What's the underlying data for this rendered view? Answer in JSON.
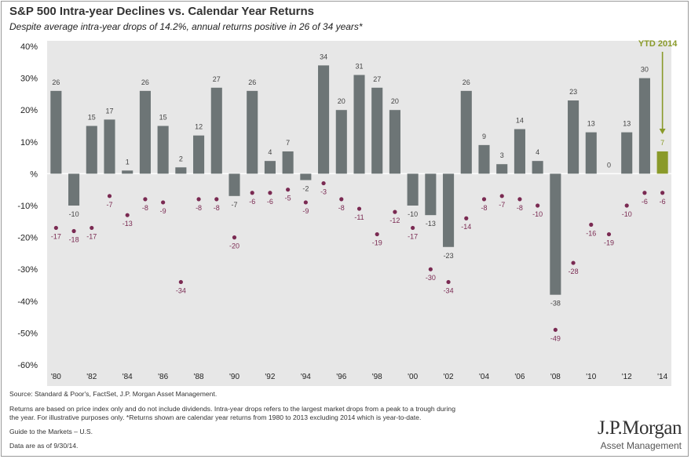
{
  "title": "S&P 500 Intra-year Declines vs. Calendar Year Returns",
  "subtitle": "Despite average intra-year drops of 14.2%, annual returns positive in 26 of 34 years*",
  "footnotes": {
    "source": "Source: Standard & Poor's, FactSet, J.P. Morgan Asset Management.",
    "line1": "Returns are based on price index only and do not include dividends. Intra-year drops refers to the largest market drops from a peak to a trough during",
    "line2": "the year. For illustrative purposes only. *Returns shown are calendar year returns from 1980 to 2013 excluding 2014 which is year-to-date.",
    "guide": "Guide to the Markets – U.S.",
    "asof": "Data are as of 9/30/14."
  },
  "logo": {
    "main": "J.P.Morgan",
    "sub": "Asset Management"
  },
  "colors": {
    "bar": "#6d7576",
    "bar_ytd": "#8a9a2a",
    "dot": "#7a2a52",
    "plot_bg": "#e7e7e7",
    "ytd_label": "#8a9a2a"
  },
  "chart_data": {
    "type": "bar",
    "categories": [
      "1980",
      "1981",
      "1982",
      "1983",
      "1984",
      "1985",
      "1986",
      "1987",
      "1988",
      "1989",
      "1990",
      "1991",
      "1992",
      "1993",
      "1994",
      "1995",
      "1996",
      "1997",
      "1998",
      "1999",
      "2000",
      "2001",
      "2002",
      "2003",
      "2004",
      "2005",
      "2006",
      "2007",
      "2008",
      "2009",
      "2010",
      "2011",
      "2012",
      "2013",
      "2014"
    ],
    "series": [
      {
        "values": [
          26,
          -10,
          15,
          17,
          1,
          26,
          15,
          2,
          12,
          27,
          -7,
          26,
          4,
          7,
          -2,
          34,
          20,
          31,
          27,
          20,
          -10,
          -13,
          -23,
          26,
          9,
          3,
          14,
          4,
          -38,
          23,
          13,
          0,
          13,
          30,
          7
        ]
      },
      {
        "values": [
          -17,
          -18,
          -17,
          -7,
          -13,
          -8,
          -9,
          -34,
          -8,
          -8,
          -20,
          -6,
          -6,
          -5,
          -9,
          -3,
          -8,
          -11,
          -19,
          -12,
          -17,
          -30,
          -34,
          -14,
          -8,
          -7,
          -8,
          -10,
          -49,
          -28,
          -16,
          -19,
          -10,
          -6,
          -6
        ]
      }
    ],
    "xticks": [
      "'80",
      "'82",
      "'84",
      "'86",
      "'88",
      "'90",
      "'92",
      "'94",
      "'96",
      "'98",
      "'00",
      "'02",
      "'04",
      "'06",
      "'08",
      "'10",
      "'12",
      "'14"
    ],
    "yticks": [
      "40%",
      "30%",
      "20%",
      "10%",
      "%",
      "-10%",
      "-20%",
      "-30%",
      "-40%",
      "-50%",
      "-60%"
    ],
    "ylim": [
      -60,
      40
    ],
    "annotations": [
      {
        "text": "YTD 2014",
        "category": "2014"
      }
    ],
    "grid": false
  }
}
